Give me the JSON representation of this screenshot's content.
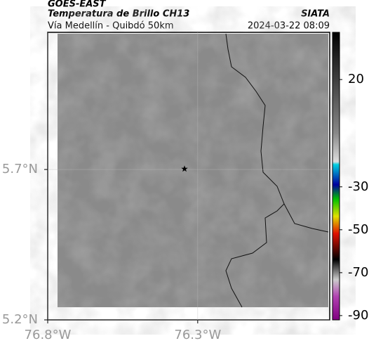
{
  "header": {
    "source": "GOES-EAST",
    "title": "Temperatura de Brillo CH13",
    "subtitle": "Vía Medellín - Quibdó 50km",
    "brand": "SIATA",
    "timestamp": "2024-03-22 08:09"
  },
  "map": {
    "xlim": [
      -76.8,
      -75.86
    ],
    "ylim": [
      5.2,
      6.156
    ],
    "xticks": [
      {
        "value": -76.8,
        "label": "76.8°W"
      },
      {
        "value": -76.3,
        "label": "76.3°W"
      }
    ],
    "yticks": [
      {
        "value": 5.7,
        "label": "5.7°N"
      },
      {
        "value": 5.2,
        "label": "5.2°N"
      }
    ],
    "grid": true,
    "marker": {
      "lon": -76.344,
      "lat": 5.702
    }
  },
  "colorbar": {
    "lim": [
      -92,
      42
    ],
    "ticks": [
      20,
      -30,
      -50,
      -70,
      -90
    ]
  }
}
